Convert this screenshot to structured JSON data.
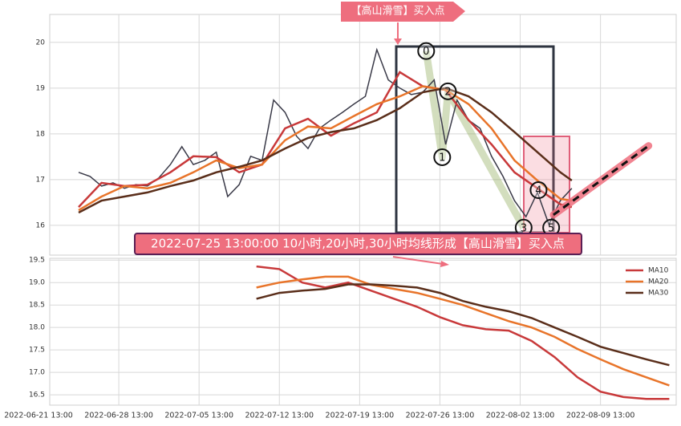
{
  "chart_data": [
    {
      "type": "line",
      "xlim": [
        0,
        55.6
      ],
      "ylim": [
        15.35,
        20.61
      ],
      "yticks": [
        16,
        17,
        18,
        19,
        20
      ],
      "grid": true,
      "series": [
        {
          "color": "#3a3a48",
          "x": [
            3.5,
            4.5,
            5.5,
            6.5,
            7.5,
            8.5,
            9.5,
            10.5,
            11.5,
            12.5,
            13.5,
            14.5,
            15.5,
            16.5,
            17.5,
            18.5,
            19.5,
            20.5,
            21.5,
            22.5,
            23.5,
            24.5,
            25.5,
            26.5,
            27.5,
            28.5,
            29.5,
            30.5,
            31.5,
            32.5,
            33.5,
            34.5,
            35.5,
            36.5,
            37.5,
            38.5,
            39.5,
            40.5,
            41.5,
            42.5,
            43.5,
            44.5,
            45.5,
            46.5
          ],
          "values": [
            17.16,
            17.07,
            16.86,
            16.93,
            16.81,
            16.89,
            16.86,
            17.04,
            17.33,
            17.72,
            17.33,
            17.42,
            17.6,
            16.63,
            16.89,
            17.51,
            17.42,
            18.74,
            18.47,
            17.95,
            17.68,
            18.12,
            18.3,
            18.47,
            18.65,
            18.82,
            19.84,
            19.18,
            19.0,
            18.86,
            18.91,
            19.18,
            17.77,
            18.74,
            18.3,
            18.12,
            17.51,
            17.07,
            16.54,
            16.19,
            16.72,
            16.02,
            16.54,
            16.81
          ]
        },
        {
          "color": "#c8393a",
          "x": [
            3.5,
            5.5,
            7.5,
            9.5,
            11.5,
            13.5,
            15.5,
            17.5,
            19.5,
            21.5,
            23.5,
            25.5,
            27.5,
            29.5,
            31.5,
            33.5,
            35.5,
            37.5,
            39.5,
            41.5,
            43.5,
            45.5,
            46.5
          ],
          "values": [
            16.4,
            16.93,
            16.86,
            16.89,
            17.16,
            17.51,
            17.49,
            17.16,
            17.33,
            18.12,
            18.33,
            17.96,
            18.23,
            18.47,
            19.35,
            19.04,
            18.96,
            18.3,
            17.77,
            17.16,
            16.81,
            16.46,
            16.4
          ]
        },
        {
          "color": "#e8742a",
          "x": [
            3.5,
            5.5,
            7.5,
            9.5,
            11.5,
            13.5,
            15.5,
            17.5,
            19.5,
            21.5,
            23.5,
            25.5,
            27.5,
            29.5,
            31.5,
            33.5,
            35.5,
            37.5,
            39.5,
            41.5,
            43.5,
            45.5,
            46.5
          ],
          "values": [
            16.33,
            16.63,
            16.86,
            16.81,
            16.93,
            17.16,
            17.42,
            17.25,
            17.33,
            17.86,
            18.16,
            18.12,
            18.39,
            18.65,
            18.82,
            19.04,
            18.96,
            18.65,
            18.12,
            17.42,
            16.98,
            16.58,
            16.54
          ]
        },
        {
          "color": "#5a2e1a",
          "x": [
            3.5,
            5.5,
            7.5,
            9.5,
            11.5,
            13.5,
            15.5,
            17.5,
            19.5,
            21.5,
            23.5,
            25.5,
            27.5,
            29.5,
            31.5,
            33.5,
            35.5,
            37.5,
            39.5,
            41.5,
            43.5,
            45.5,
            46.5
          ],
          "values": [
            16.28,
            16.54,
            16.63,
            16.72,
            16.86,
            16.98,
            17.16,
            17.28,
            17.42,
            17.68,
            17.91,
            18.04,
            18.12,
            18.3,
            18.56,
            18.91,
            19.0,
            18.82,
            18.47,
            18.04,
            17.6,
            17.16,
            16.98
          ]
        }
      ],
      "points": [
        {
          "x": 33.8,
          "y": 19.81,
          "label": "0"
        },
        {
          "x": 35.2,
          "y": 17.49,
          "label": "1"
        },
        {
          "x": 35.7,
          "y": 18.93,
          "label": "2"
        },
        {
          "x": 42.3,
          "y": 15.95,
          "label": "3"
        },
        {
          "x": 43.6,
          "y": 16.77,
          "label": "4"
        },
        {
          "x": 44.7,
          "y": 15.95,
          "label": "5"
        }
      ],
      "projection": {
        "x": [
          44.9,
          53.2
        ],
        "y": [
          16.23,
          17.74
        ]
      },
      "annotations": [
        "【高山滑雪】买入点",
        "2022-07-25 13:00:00 10小时,20小时,30小时均线形成【高山滑雪】买入点"
      ]
    },
    {
      "type": "line",
      "xlim": [
        0,
        55.6
      ],
      "ylim": [
        16.27,
        19.54
      ],
      "xticks": [
        {
          "value": 0,
          "label": "2022-06-21 13:00"
        },
        {
          "value": 7,
          "label": "2022-06-28 13:00"
        },
        {
          "value": 14,
          "label": "2022-07-05 13:00"
        },
        {
          "value": 21,
          "label": "2022-07-12 13:00"
        },
        {
          "value": 28,
          "label": "2022-07-19 13:00"
        },
        {
          "value": 35,
          "label": "2022-07-26 13:00"
        },
        {
          "value": 42,
          "label": "2022-08-02 13:00"
        },
        {
          "value": 49,
          "label": "2022-08-09 13:00"
        }
      ],
      "yticks": [
        16.5,
        {
          "value": 17,
          "label": "17.0"
        },
        17.5,
        {
          "value": 18,
          "label": "18.0"
        },
        18.5,
        {
          "value": 19,
          "label": "19.0"
        },
        19.5
      ],
      "grid": true,
      "legend": "upper right",
      "x": [
        19,
        21,
        23,
        25,
        27,
        29,
        31,
        33,
        35,
        37,
        39,
        41,
        43,
        45,
        47,
        49,
        51,
        53,
        55
      ],
      "series": [
        {
          "name": "MA10",
          "color": "#c8393a",
          "values": [
            19.36,
            19.3,
            19.0,
            18.89,
            19.0,
            18.82,
            18.64,
            18.46,
            18.23,
            18.05,
            17.96,
            17.93,
            17.7,
            17.34,
            16.89,
            16.57,
            16.45,
            16.41,
            16.41
          ]
        },
        {
          "name": "MA20",
          "color": "#e8742a",
          "values": [
            18.89,
            19.0,
            19.07,
            19.13,
            19.13,
            18.95,
            18.86,
            18.77,
            18.64,
            18.5,
            18.32,
            18.14,
            18.0,
            17.79,
            17.52,
            17.29,
            17.07,
            16.89,
            16.71
          ]
        },
        {
          "name": "MA30",
          "color": "#5a2e1a",
          "values": [
            18.64,
            18.77,
            18.82,
            18.86,
            18.96,
            18.96,
            18.93,
            18.89,
            18.77,
            18.59,
            18.46,
            18.36,
            18.21,
            18.0,
            17.79,
            17.57,
            17.43,
            17.29,
            17.16
          ]
        }
      ]
    }
  ]
}
